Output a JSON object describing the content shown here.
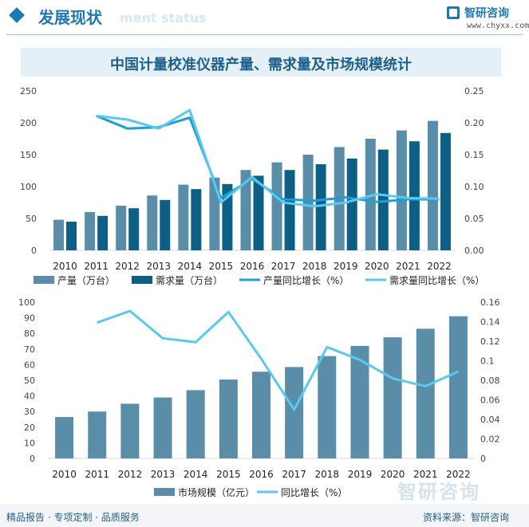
{
  "header": {
    "title": "发展现状",
    "subtitle": "ment status",
    "brand": "智研咨询",
    "site": "www.chyxx.com"
  },
  "watermark": "智研咨询",
  "footer": {
    "left": "精品报告 · 专项定制 · 品质服务",
    "right": "资料来源：智研咨询"
  },
  "colors": {
    "bar_light": "#5a8ea8",
    "bar_dark": "#0d5f86",
    "line_dark": "#1a9fd6",
    "line_light": "#5bc8ef",
    "accent": "#1f78b4"
  },
  "chart_data": [
    {
      "type": "bar",
      "title": "中国计量校准仪器产量、需求量及市场规模统计",
      "categories": [
        "2010",
        "2011",
        "2012",
        "2013",
        "2014",
        "2015",
        "2016",
        "2017",
        "2018",
        "2019",
        "2020",
        "2021",
        "2022"
      ],
      "series": [
        {
          "name": "产量（万台）",
          "kind": "bar",
          "axis": "left",
          "values": [
            48,
            60,
            70,
            86,
            103,
            114,
            126,
            138,
            150,
            162,
            175,
            188,
            203
          ]
        },
        {
          "name": "需求量（万台）",
          "kind": "bar",
          "axis": "left",
          "values": [
            45,
            54,
            66,
            79,
            96,
            104,
            117,
            126,
            135,
            144,
            158,
            171,
            184
          ]
        },
        {
          "name": "产量同比增长（%）",
          "kind": "line",
          "axis": "right",
          "values": [
            null,
            0.211,
            0.191,
            0.193,
            0.208,
            0.082,
            0.112,
            0.08,
            0.078,
            0.083,
            0.076,
            0.08,
            0.08
          ]
        },
        {
          "name": "需求量同比增长（%）",
          "kind": "line",
          "axis": "right",
          "values": [
            null,
            0.211,
            0.205,
            0.191,
            0.22,
            0.075,
            0.115,
            0.075,
            0.069,
            0.075,
            0.088,
            0.082,
            0.081
          ]
        }
      ],
      "ylim_left": [
        0,
        250
      ],
      "yticks_left": [
        "0",
        "50",
        "100",
        "150",
        "200",
        "250"
      ],
      "ylim_right": [
        0,
        0.25
      ],
      "yticks_right": [
        "0.00",
        "0.05",
        "0.10",
        "0.15",
        "0.20",
        "0.25"
      ],
      "legend": "bottom"
    },
    {
      "type": "bar",
      "categories": [
        "2010",
        "2011",
        "2012",
        "2013",
        "2014",
        "2015",
        "2016",
        "2017",
        "2018",
        "2019",
        "2020",
        "2021",
        "2022"
      ],
      "series": [
        {
          "name": "市场规模（亿元）",
          "kind": "bar",
          "axis": "left",
          "values": [
            26.5,
            30.0,
            35.0,
            39.0,
            43.7,
            50.5,
            55.5,
            58.5,
            65.5,
            72.0,
            77.5,
            83.0,
            91.0
          ]
        },
        {
          "name": "同比增长（%）",
          "kind": "line",
          "axis": "right",
          "values": [
            null,
            0.139,
            0.151,
            0.123,
            0.119,
            0.15,
            0.102,
            0.05,
            0.114,
            0.101,
            0.082,
            0.074,
            0.089
          ]
        }
      ],
      "ylim_left": [
        0,
        100
      ],
      "yticks_left": [
        "0",
        "10",
        "20",
        "30",
        "40",
        "50",
        "60",
        "70",
        "80",
        "90",
        "100"
      ],
      "ylim_right": [
        0,
        0.16
      ],
      "yticks_right": [
        "0",
        "0.02",
        "0.04",
        "0.06",
        "0.08",
        "0.1",
        "0.12",
        "0.14",
        "0.16"
      ],
      "legend": "bottom"
    }
  ]
}
